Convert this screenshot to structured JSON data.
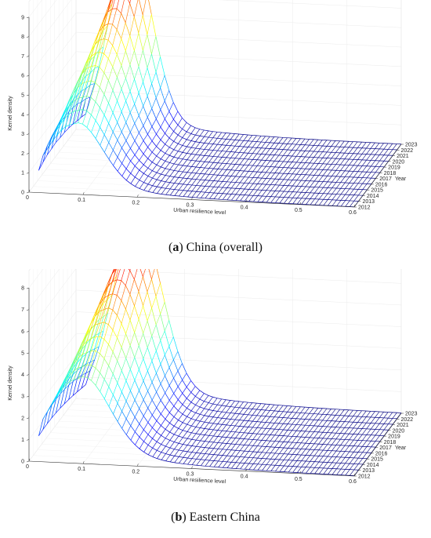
{
  "panels": [
    {
      "caption_letter": "a",
      "caption_text": "China (overall)",
      "chart_data": {
        "type": "surface",
        "xlabel": "Urban resilience level",
        "ylabel": "Year",
        "zlabel": "Kernel density",
        "x_ticks": [
          "0",
          "0.1",
          "0.2",
          "0.3",
          "0.4",
          "0.5",
          "0.6"
        ],
        "y_ticks": [
          "2012",
          "2013",
          "2014",
          "2015",
          "2016",
          "2017",
          "2018",
          "2019",
          "2020",
          "2021",
          "2022",
          "2023"
        ],
        "z_ticks": [
          "0",
          "1",
          "2",
          "3",
          "4",
          "5",
          "6",
          "7",
          "8",
          "9"
        ],
        "xlim": [
          0,
          0.6
        ],
        "zlim": [
          0,
          9
        ],
        "colormap": "jet",
        "grid": true,
        "peak": {
          "x": [
            0.082,
            0.082,
            0.083,
            0.084,
            0.085,
            0.087,
            0.088,
            0.09,
            0.092,
            0.095,
            0.097,
            0.1
          ],
          "height": [
            3.6,
            4.0,
            4.4,
            4.9,
            5.4,
            5.8,
            6.2,
            6.7,
            7.2,
            7.8,
            8.5,
            9.3
          ],
          "width": [
            0.05,
            0.05,
            0.05,
            0.048,
            0.047,
            0.046,
            0.045,
            0.044,
            0.043,
            0.042,
            0.041,
            0.04
          ]
        },
        "tail": {
          "value": 0.5,
          "decay": 0.12
        }
      }
    },
    {
      "caption_letter": "b",
      "caption_text": "Eastern China",
      "chart_data": {
        "type": "surface",
        "xlabel": "Urban resilience level",
        "ylabel": "Year",
        "zlabel": "Kernel density",
        "x_ticks": [
          "0",
          "0.1",
          "0.2",
          "0.3",
          "0.4",
          "0.5",
          "0.6"
        ],
        "y_ticks": [
          "2012",
          "2013",
          "2014",
          "2015",
          "2016",
          "2017",
          "2018",
          "2019",
          "2020",
          "2021",
          "2022",
          "2023"
        ],
        "z_ticks": [
          "0",
          "1",
          "2",
          "3",
          "4",
          "5",
          "6",
          "7",
          "8"
        ],
        "xlim": [
          0,
          0.6
        ],
        "zlim": [
          0,
          8
        ],
        "colormap": "jet",
        "grid": true,
        "peak": {
          "x": [
            0.09,
            0.092,
            0.094,
            0.096,
            0.098,
            0.1,
            0.102,
            0.104,
            0.106,
            0.108,
            0.11,
            0.112
          ],
          "height": [
            3.9,
            4.2,
            4.6,
            5.0,
            5.4,
            5.8,
            6.2,
            6.6,
            7.0,
            7.4,
            7.7,
            8.1
          ],
          "width": [
            0.055,
            0.055,
            0.054,
            0.053,
            0.052,
            0.051,
            0.05,
            0.049,
            0.048,
            0.047,
            0.046,
            0.045
          ]
        },
        "tail": {
          "value": 0.6,
          "decay": 0.13
        }
      }
    }
  ]
}
